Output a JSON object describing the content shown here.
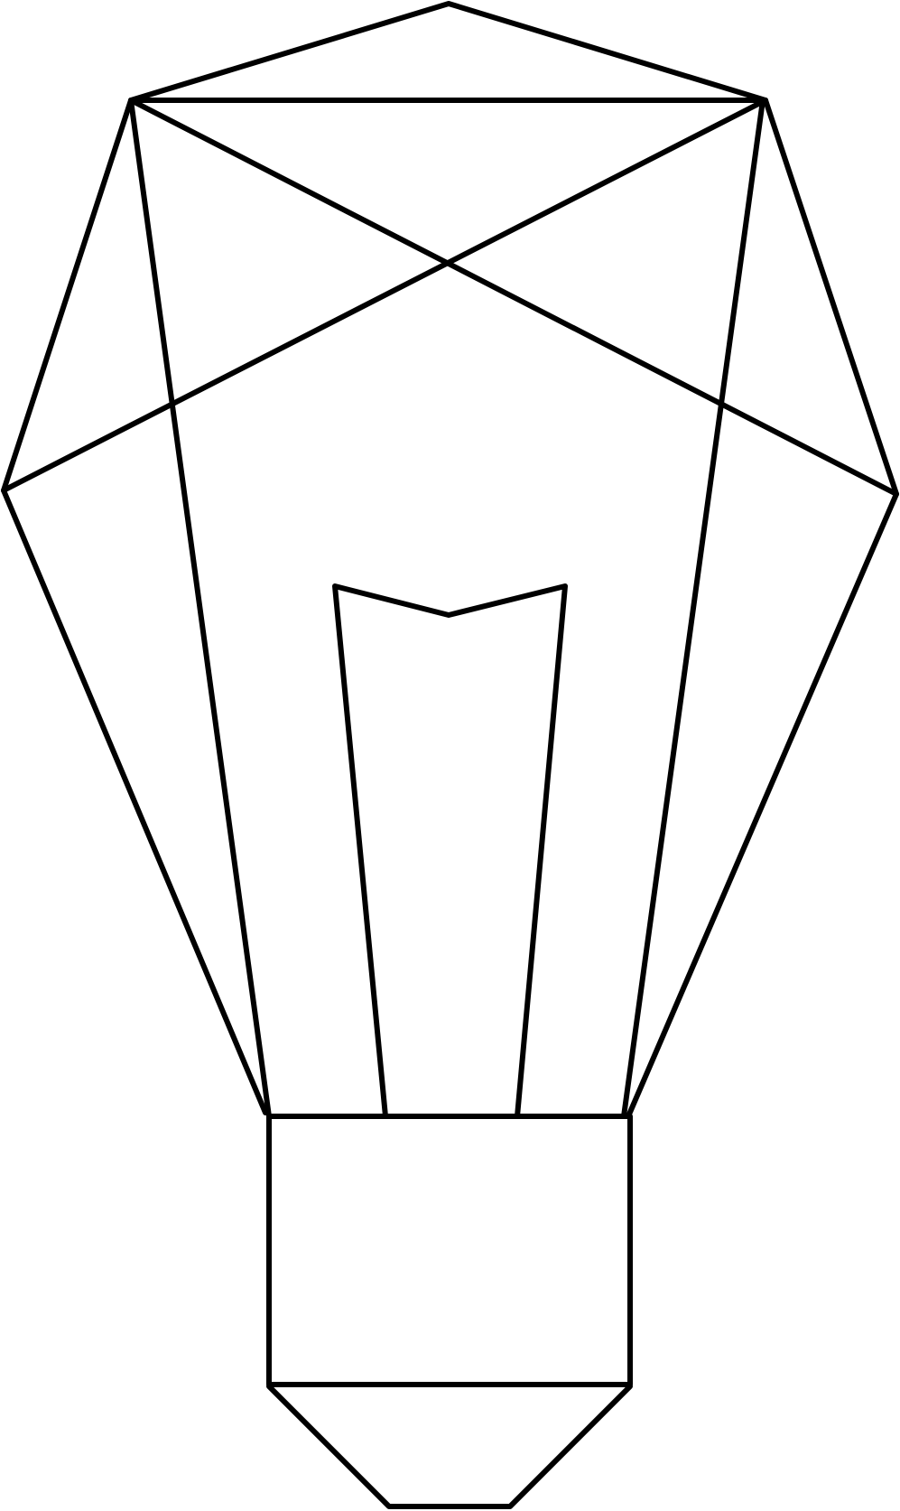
{
  "drawing": {
    "subject": "lightbulb-line-art",
    "stroke_color": "#000000",
    "background_color": "#ffffff",
    "parts": [
      "faceted-glass-bulb",
      "filament",
      "screw-base-collar",
      "base-tip"
    ]
  }
}
